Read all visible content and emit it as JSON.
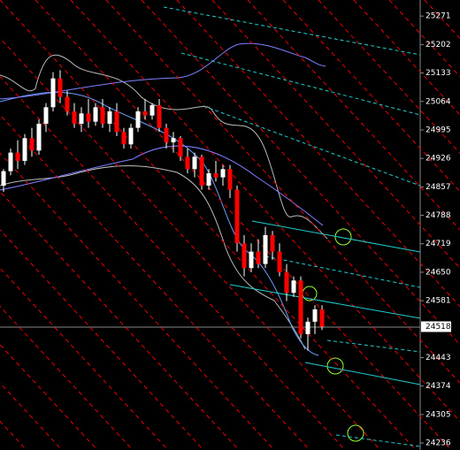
{
  "chart_data": {
    "type": "candlestick",
    "ylim": [
      24219,
      25310
    ],
    "yticks": [
      25271,
      25202,
      25133,
      25064,
      24995,
      24926,
      24857,
      24788,
      24719,
      24650,
      24581,
      24443,
      24374,
      24305,
      24236
    ],
    "current_price": 24518,
    "up_color": "#ffffff",
    "down_color": "#ff0000",
    "open": [
      24860,
      24895,
      24940,
      24920,
      24975,
      24945,
      25010,
      25050,
      25120,
      25075,
      25040,
      25010,
      25035,
      25015,
      25050,
      25010,
      25040,
      24990,
      24960,
      25000,
      25040,
      25030,
      25055,
      25000,
      24965,
      24975,
      24930,
      24900,
      24930,
      24860,
      24890,
      24880,
      24900,
      24850,
      24720,
      24660,
      24700,
      24670,
      24740,
      24700,
      24650,
      24600,
      24630,
      24500,
      24530,
      24560
    ],
    "high": [
      24900,
      24950,
      24970,
      24985,
      25000,
      25020,
      25060,
      25135,
      25140,
      25090,
      25060,
      25050,
      25070,
      25060,
      25070,
      25050,
      25060,
      25000,
      25010,
      25050,
      25070,
      25060,
      25070,
      25010,
      24990,
      24980,
      24950,
      24940,
      24935,
      24900,
      24920,
      24910,
      24910,
      24860,
      24740,
      24720,
      24730,
      24760,
      24750,
      24720,
      24670,
      24640,
      24640,
      24540,
      24570,
      24570
    ],
    "low": [
      24845,
      24885,
      24900,
      24910,
      24930,
      24935,
      24990,
      25040,
      25060,
      25030,
      25000,
      24990,
      25000,
      25005,
      25000,
      24990,
      24980,
      24950,
      24950,
      24990,
      25020,
      25020,
      24990,
      24950,
      24940,
      24920,
      24890,
      24880,
      24850,
      24850,
      24870,
      24860,
      24830,
      24700,
      24640,
      24650,
      24660,
      24660,
      24680,
      24640,
      24580,
      24590,
      24490,
      24460,
      24500,
      24510
    ],
    "close": [
      24895,
      24940,
      24920,
      24975,
      24945,
      25010,
      25050,
      25120,
      25075,
      25040,
      25010,
      25035,
      25015,
      25050,
      25010,
      25040,
      24990,
      24960,
      25000,
      25040,
      25030,
      25055,
      25000,
      24965,
      24975,
      24930,
      24900,
      24930,
      24860,
      24890,
      24880,
      24900,
      24850,
      24720,
      24660,
      24700,
      24670,
      24740,
      24700,
      24650,
      24600,
      24630,
      24500,
      24530,
      24560,
      24518
    ]
  }
}
